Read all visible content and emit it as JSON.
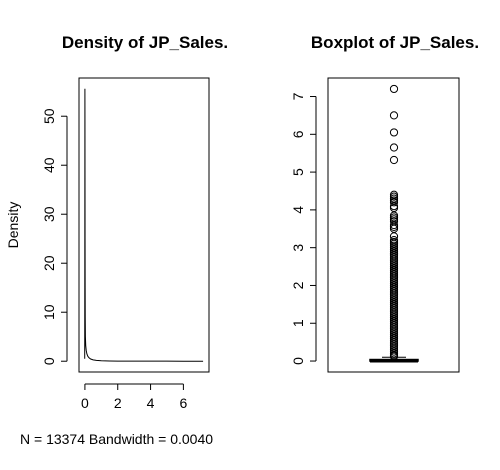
{
  "chart_data": [
    {
      "type": "line",
      "title": "Density of JP_Sales.",
      "xlabel": "N = 13374   Bandwidth = 0.0040",
      "ylabel": "Density",
      "xlim": [
        -0.36,
        7.56
      ],
      "ylim": [
        -2.2,
        57.8
      ],
      "x_ticks": [
        0,
        2,
        4,
        6
      ],
      "y_ticks": [
        0,
        10,
        20,
        30,
        40,
        50
      ],
      "grid": false,
      "x": [
        -0.012,
        -0.006,
        0.0,
        0.003,
        0.006,
        0.01,
        0.015,
        0.02,
        0.03,
        0.05,
        0.08,
        0.12,
        0.18,
        0.25,
        0.35,
        0.5,
        0.7,
        1.0,
        1.5,
        2.0,
        3.0,
        4.0,
        5.0,
        6.0,
        7.0,
        7.2
      ],
      "y": [
        0.5,
        20.0,
        55.6,
        50.0,
        38.0,
        25.0,
        15.0,
        9.0,
        5.0,
        3.2,
        2.2,
        1.5,
        1.0,
        0.7,
        0.45,
        0.28,
        0.18,
        0.1,
        0.05,
        0.03,
        0.02,
        0.012,
        0.008,
        0.005,
        0.003,
        0.0
      ]
    },
    {
      "type": "boxplot",
      "title": "Boxplot of JP_Sales.",
      "ylim": [
        -0.29,
        7.49
      ],
      "y_ticks": [
        0,
        1,
        2,
        3,
        4,
        5,
        6,
        7
      ],
      "grid": false,
      "box": {
        "min": 0,
        "q1": 0,
        "median": 0,
        "q3": 0.04,
        "whisker_high": 0.1
      },
      "outliers": [
        7.2,
        6.5,
        6.05,
        5.65,
        5.32,
        4.4,
        4.35,
        4.3,
        4.25,
        4.2,
        4.1,
        4.05,
        3.85,
        3.8,
        3.75,
        3.7,
        3.6,
        3.55,
        3.5,
        3.3,
        3.2,
        3.15,
        3.1,
        3.05,
        3.0,
        2.95,
        2.9,
        2.85,
        2.8,
        2.75,
        2.7,
        2.65,
        2.6,
        2.55,
        2.5,
        2.45,
        2.4,
        2.35,
        2.3,
        2.25,
        2.2,
        2.15,
        2.1,
        2.05,
        2.0,
        1.95,
        1.9,
        1.85,
        1.8,
        1.75,
        1.7,
        1.65,
        1.6,
        1.55,
        1.5,
        1.45,
        1.4,
        1.35,
        1.3,
        1.25,
        1.2,
        1.15,
        1.1,
        1.05,
        1.0,
        0.95,
        0.9,
        0.85,
        0.8,
        0.75,
        0.7,
        0.65,
        0.6,
        0.55,
        0.5,
        0.45,
        0.4,
        0.35,
        0.3,
        0.25,
        0.2,
        0.15,
        0.12
      ]
    }
  ]
}
